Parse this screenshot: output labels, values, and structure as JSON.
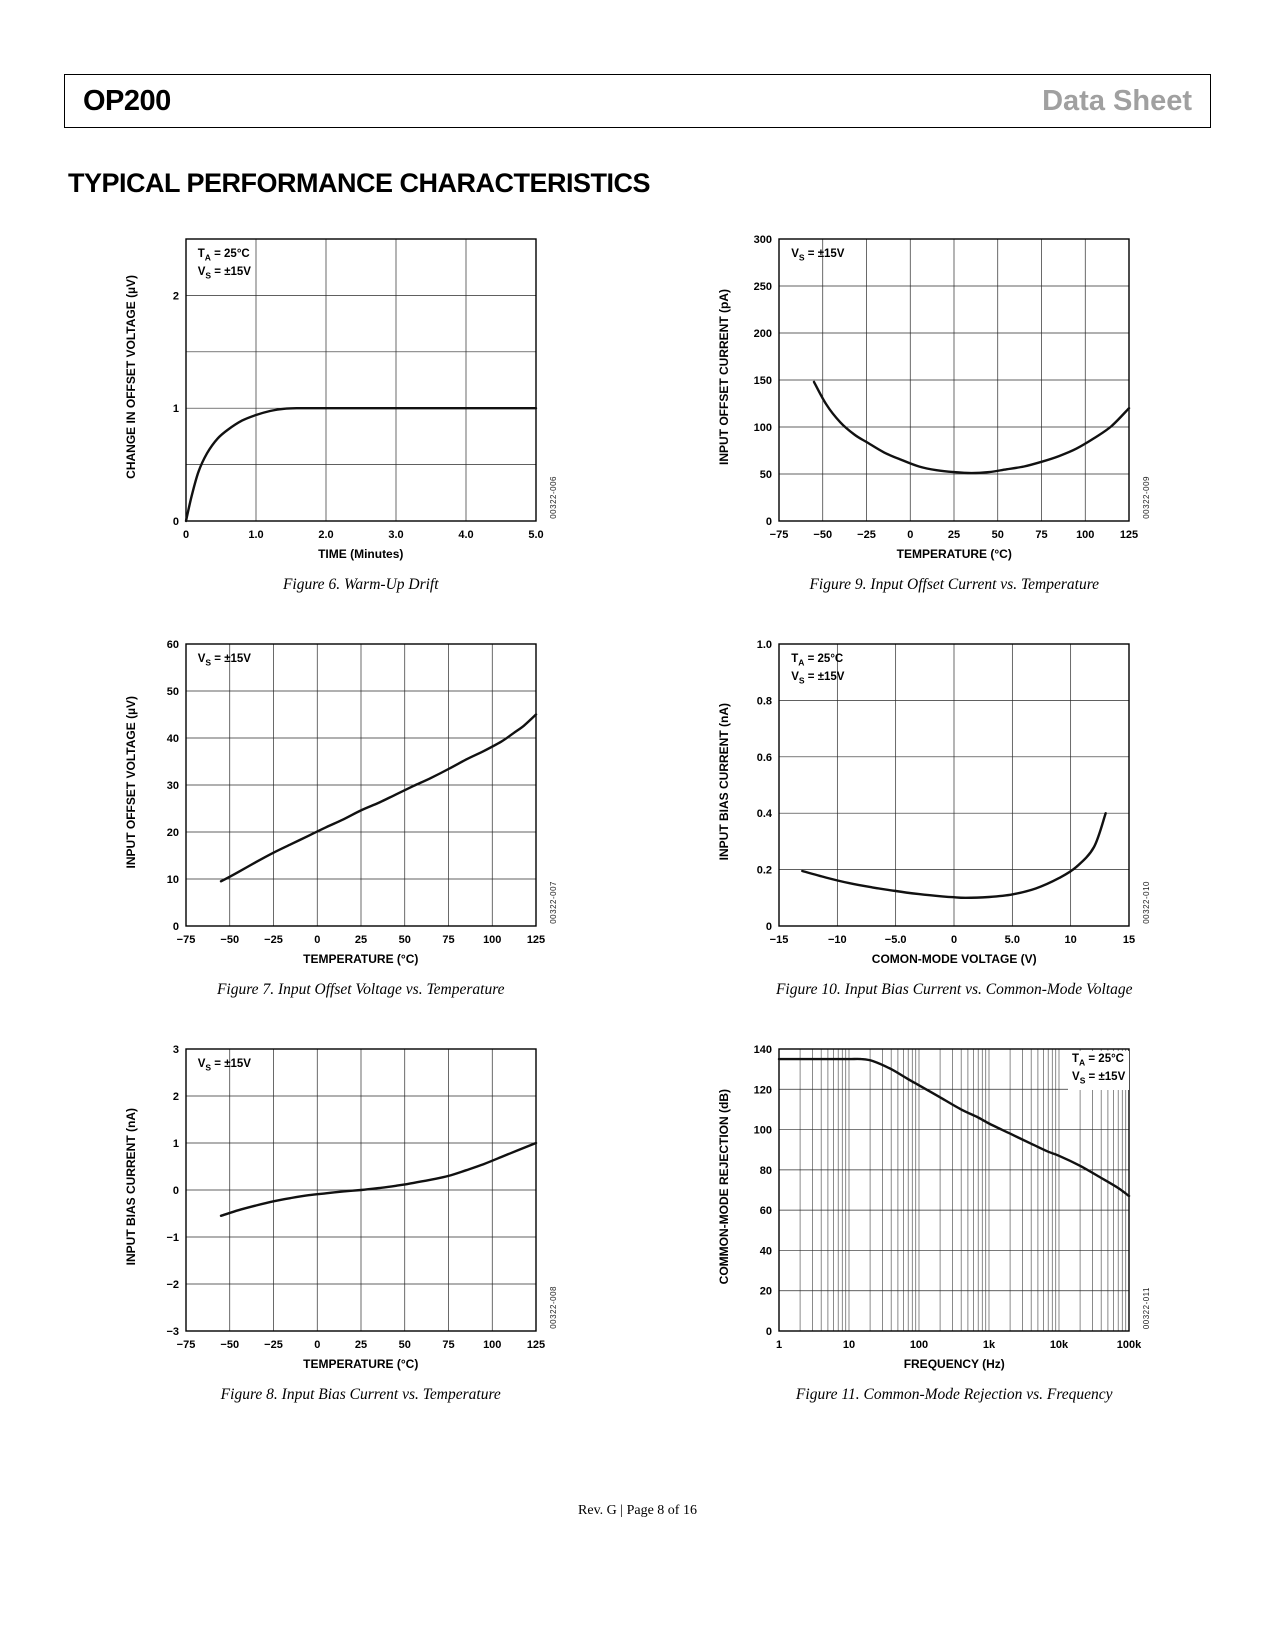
{
  "header": {
    "product": "OP200",
    "doc_type": "Data Sheet"
  },
  "section_title": "TYPICAL PERFORMANCE CHARACTERISTICS",
  "footer": {
    "text": "Rev. G | Page 8 of 16"
  },
  "chart_data": [
    {
      "type": "line",
      "caption": "Figure 6. Warm-Up Drift",
      "code": "00322-006",
      "ylabel": "CHANGE IN OFFSET VOLTAGE (µV)",
      "xlabel": "TIME (Minutes)",
      "xlim": [
        0,
        5
      ],
      "ylim": [
        0,
        2.5
      ],
      "x_grid": [
        1,
        2,
        3,
        4
      ],
      "y_grid": [
        0.5,
        1,
        1.5,
        2
      ],
      "x_ticks": [
        {
          "v": 0,
          "l": "0"
        },
        {
          "v": 1,
          "l": "1.0"
        },
        {
          "v": 2,
          "l": "2.0"
        },
        {
          "v": 3,
          "l": "3.0"
        },
        {
          "v": 4,
          "l": "4.0"
        },
        {
          "v": 5,
          "l": "5.0"
        }
      ],
      "y_ticks": [
        {
          "v": 0,
          "l": "0"
        },
        {
          "v": 1,
          "l": "1"
        },
        {
          "v": 2,
          "l": "2"
        }
      ],
      "annotation": {
        "pos": "tl",
        "lines": [
          {
            "pre": "T",
            "sub": "A",
            "post": " = 25°C"
          },
          {
            "pre": "V",
            "sub": "S",
            "post": " = ±15V"
          }
        ]
      },
      "series": [
        [
          0,
          0
        ],
        [
          0.08,
          0.22
        ],
        [
          0.18,
          0.44
        ],
        [
          0.3,
          0.6
        ],
        [
          0.45,
          0.73
        ],
        [
          0.6,
          0.81
        ],
        [
          0.8,
          0.89
        ],
        [
          1.0,
          0.94
        ],
        [
          1.2,
          0.975
        ],
        [
          1.4,
          0.995
        ],
        [
          1.6,
          1.0
        ],
        [
          2.0,
          1.0
        ],
        [
          3.0,
          1.0
        ],
        [
          4.0,
          1.0
        ],
        [
          5.0,
          1.0
        ]
      ]
    },
    {
      "type": "line",
      "caption": "Figure 9. Input Offset Current vs. Temperature",
      "code": "00322-009",
      "ylabel": "INPUT OFFSET CURRENT (pA)",
      "xlabel": "TEMPERATURE (°C)",
      "xlim": [
        -75,
        125
      ],
      "ylim": [
        0,
        300
      ],
      "x_grid": [
        -50,
        -25,
        0,
        25,
        50,
        75,
        100
      ],
      "y_grid": [
        50,
        100,
        150,
        200,
        250
      ],
      "x_ticks": [
        {
          "v": -75,
          "l": "−75"
        },
        {
          "v": -50,
          "l": "−50"
        },
        {
          "v": -25,
          "l": "−25"
        },
        {
          "v": 0,
          "l": "0"
        },
        {
          "v": 25,
          "l": "25"
        },
        {
          "v": 50,
          "l": "50"
        },
        {
          "v": 75,
          "l": "75"
        },
        {
          "v": 100,
          "l": "100"
        },
        {
          "v": 125,
          "l": "125"
        }
      ],
      "y_ticks": [
        {
          "v": 0,
          "l": "0"
        },
        {
          "v": 50,
          "l": "50"
        },
        {
          "v": 100,
          "l": "100"
        },
        {
          "v": 150,
          "l": "150"
        },
        {
          "v": 200,
          "l": "200"
        },
        {
          "v": 250,
          "l": "250"
        },
        {
          "v": 300,
          "l": "300"
        }
      ],
      "annotation": {
        "pos": "tl",
        "lines": [
          {
            "pre": "V",
            "sub": "S",
            "post": " = ±15V"
          }
        ]
      },
      "series": [
        [
          -55,
          148
        ],
        [
          -48,
          124
        ],
        [
          -40,
          105
        ],
        [
          -32,
          92
        ],
        [
          -25,
          84
        ],
        [
          -15,
          73
        ],
        [
          -5,
          65
        ],
        [
          5,
          58
        ],
        [
          15,
          54
        ],
        [
          25,
          52
        ],
        [
          35,
          51
        ],
        [
          45,
          52
        ],
        [
          55,
          55
        ],
        [
          65,
          58
        ],
        [
          75,
          63
        ],
        [
          85,
          69
        ],
        [
          95,
          77
        ],
        [
          105,
          88
        ],
        [
          115,
          101
        ],
        [
          125,
          120
        ]
      ]
    },
    {
      "type": "line",
      "caption": "Figure 7. Input Offset Voltage vs. Temperature",
      "code": "00322-007",
      "ylabel": "INPUT OFFSET VOLTAGE (µV)",
      "xlabel": "TEMPERATURE (°C)",
      "xlim": [
        -75,
        125
      ],
      "ylim": [
        0,
        60
      ],
      "x_grid": [
        -50,
        -25,
        0,
        25,
        50,
        75,
        100
      ],
      "y_grid": [
        10,
        20,
        30,
        40,
        50
      ],
      "x_ticks": [
        {
          "v": -75,
          "l": "−75"
        },
        {
          "v": -50,
          "l": "−50"
        },
        {
          "v": -25,
          "l": "−25"
        },
        {
          "v": 0,
          "l": "0"
        },
        {
          "v": 25,
          "l": "25"
        },
        {
          "v": 50,
          "l": "50"
        },
        {
          "v": 75,
          "l": "75"
        },
        {
          "v": 100,
          "l": "100"
        },
        {
          "v": 125,
          "l": "125"
        }
      ],
      "y_ticks": [
        {
          "v": 0,
          "l": "0"
        },
        {
          "v": 10,
          "l": "10"
        },
        {
          "v": 20,
          "l": "20"
        },
        {
          "v": 30,
          "l": "30"
        },
        {
          "v": 40,
          "l": "40"
        },
        {
          "v": 50,
          "l": "50"
        },
        {
          "v": 60,
          "l": "60"
        }
      ],
      "annotation": {
        "pos": "tl",
        "lines": [
          {
            "pre": "V",
            "sub": "S",
            "post": " = ±15V"
          }
        ]
      },
      "series": [
        [
          -55,
          9.5
        ],
        [
          -45,
          11.5
        ],
        [
          -35,
          13.6
        ],
        [
          -25,
          15.6
        ],
        [
          -15,
          17.4
        ],
        [
          -5,
          19.2
        ],
        [
          5,
          21
        ],
        [
          15,
          22.7
        ],
        [
          25,
          24.6
        ],
        [
          35,
          26.2
        ],
        [
          45,
          28
        ],
        [
          55,
          29.8
        ],
        [
          65,
          31.5
        ],
        [
          75,
          33.4
        ],
        [
          85,
          35.4
        ],
        [
          95,
          37.2
        ],
        [
          105,
          39.2
        ],
        [
          112,
          41
        ],
        [
          118,
          42.6
        ],
        [
          125,
          45
        ]
      ]
    },
    {
      "type": "line",
      "caption": "Figure 10. Input Bias Current vs. Common-Mode Voltage",
      "code": "00322-010",
      "ylabel": "INPUT BIAS CURRENT (nA)",
      "xlabel": "COMON-MODE VOLTAGE (V)",
      "xlim": [
        -15,
        15
      ],
      "ylim": [
        0,
        1.0
      ],
      "x_grid": [
        -10,
        -5,
        0,
        5,
        10
      ],
      "y_grid": [
        0.2,
        0.4,
        0.6,
        0.8
      ],
      "x_ticks": [
        {
          "v": -15,
          "l": "−15"
        },
        {
          "v": -10,
          "l": "−10"
        },
        {
          "v": -5,
          "l": "−5.0"
        },
        {
          "v": 0,
          "l": "0"
        },
        {
          "v": 5,
          "l": "5.0"
        },
        {
          "v": 10,
          "l": "10"
        },
        {
          "v": 15,
          "l": "15"
        }
      ],
      "y_ticks": [
        {
          "v": 0,
          "l": "0"
        },
        {
          "v": 0.2,
          "l": "0.2"
        },
        {
          "v": 0.4,
          "l": "0.4"
        },
        {
          "v": 0.6,
          "l": "0.6"
        },
        {
          "v": 0.8,
          "l": "0.8"
        },
        {
          "v": 1.0,
          "l": "1.0"
        }
      ],
      "annotation": {
        "pos": "tl",
        "lines": [
          {
            "pre": "T",
            "sub": "A",
            "post": " = 25°C"
          },
          {
            "pre": "V",
            "sub": "S",
            "post": " = ±15V"
          }
        ]
      },
      "series": [
        [
          -13,
          0.195
        ],
        [
          -11,
          0.172
        ],
        [
          -9,
          0.152
        ],
        [
          -7,
          0.137
        ],
        [
          -5,
          0.124
        ],
        [
          -3,
          0.113
        ],
        [
          -1,
          0.105
        ],
        [
          0,
          0.102
        ],
        [
          1,
          0.1
        ],
        [
          3,
          0.103
        ],
        [
          5,
          0.112
        ],
        [
          7,
          0.133
        ],
        [
          9,
          0.17
        ],
        [
          10.5,
          0.21
        ],
        [
          12,
          0.28
        ],
        [
          13,
          0.4
        ]
      ]
    },
    {
      "type": "line",
      "caption": "Figure 8. Input Bias Current vs. Temperature",
      "code": "00322-008",
      "ylabel": "INPUT BIAS CURRENT (nA)",
      "xlabel": "TEMPERATURE (°C)",
      "xlim": [
        -75,
        125
      ],
      "ylim": [
        -3,
        3
      ],
      "x_grid": [
        -50,
        -25,
        0,
        25,
        50,
        75,
        100
      ],
      "y_grid": [
        -2,
        -1,
        0,
        1,
        2
      ],
      "x_ticks": [
        {
          "v": -75,
          "l": "−75"
        },
        {
          "v": -50,
          "l": "−50"
        },
        {
          "v": -25,
          "l": "−25"
        },
        {
          "v": 0,
          "l": "0"
        },
        {
          "v": 25,
          "l": "25"
        },
        {
          "v": 50,
          "l": "50"
        },
        {
          "v": 75,
          "l": "75"
        },
        {
          "v": 100,
          "l": "100"
        },
        {
          "v": 125,
          "l": "125"
        }
      ],
      "y_ticks": [
        {
          "v": -3,
          "l": "−3"
        },
        {
          "v": -2,
          "l": "−2"
        },
        {
          "v": -1,
          "l": "−1"
        },
        {
          "v": 0,
          "l": "0"
        },
        {
          "v": 1,
          "l": "1"
        },
        {
          "v": 2,
          "l": "2"
        },
        {
          "v": 3,
          "l": "3"
        }
      ],
      "annotation": {
        "pos": "tl",
        "lines": [
          {
            "pre": "V",
            "sub": "S",
            "post": " = ±15V"
          }
        ]
      },
      "series": [
        [
          -55,
          -0.55
        ],
        [
          -45,
          -0.43
        ],
        [
          -35,
          -0.33
        ],
        [
          -25,
          -0.24
        ],
        [
          -15,
          -0.17
        ],
        [
          -5,
          -0.11
        ],
        [
          5,
          -0.07
        ],
        [
          15,
          -0.03
        ],
        [
          25,
          0.0
        ],
        [
          35,
          0.04
        ],
        [
          45,
          0.09
        ],
        [
          55,
          0.15
        ],
        [
          65,
          0.22
        ],
        [
          75,
          0.3
        ],
        [
          85,
          0.42
        ],
        [
          95,
          0.55
        ],
        [
          105,
          0.7
        ],
        [
          115,
          0.85
        ],
        [
          125,
          1.0
        ]
      ]
    },
    {
      "type": "line",
      "caption": "Figure 11. Common-Mode Rejection vs. Frequency",
      "code": "00322-011",
      "ylabel": "COMMON-MODE REJECTION (dB)",
      "xlabel": "FREQUENCY (Hz)",
      "x_log": true,
      "xlim": [
        1,
        100000
      ],
      "ylim": [
        0,
        140
      ],
      "y_grid": [
        20,
        40,
        60,
        80,
        100,
        120
      ],
      "x_ticks": [
        {
          "v": 1,
          "l": "1"
        },
        {
          "v": 10,
          "l": "10"
        },
        {
          "v": 100,
          "l": "100"
        },
        {
          "v": 1000,
          "l": "1k"
        },
        {
          "v": 10000,
          "l": "10k"
        },
        {
          "v": 100000,
          "l": "100k"
        }
      ],
      "y_ticks": [
        {
          "v": 0,
          "l": "0"
        },
        {
          "v": 20,
          "l": "20"
        },
        {
          "v": 40,
          "l": "40"
        },
        {
          "v": 60,
          "l": "60"
        },
        {
          "v": 80,
          "l": "80"
        },
        {
          "v": 100,
          "l": "100"
        },
        {
          "v": 120,
          "l": "120"
        },
        {
          "v": 140,
          "l": "140"
        }
      ],
      "annotation": {
        "pos": "tr",
        "lines": [
          {
            "pre": "T",
            "sub": "A",
            "post": " = 25°C"
          },
          {
            "pre": "V",
            "sub": "S",
            "post": " = ±15V"
          }
        ]
      },
      "series": [
        [
          1,
          135
        ],
        [
          5,
          135
        ],
        [
          10,
          135
        ],
        [
          15,
          135
        ],
        [
          22,
          134
        ],
        [
          40,
          130
        ],
        [
          70,
          125
        ],
        [
          100,
          122
        ],
        [
          200,
          116
        ],
        [
          400,
          110
        ],
        [
          700,
          106
        ],
        [
          1000,
          103
        ],
        [
          2000,
          98
        ],
        [
          4000,
          93
        ],
        [
          7000,
          89
        ],
        [
          10000,
          87
        ],
        [
          20000,
          82
        ],
        [
          40000,
          76
        ],
        [
          70000,
          71
        ],
        [
          100000,
          67
        ]
      ]
    }
  ]
}
